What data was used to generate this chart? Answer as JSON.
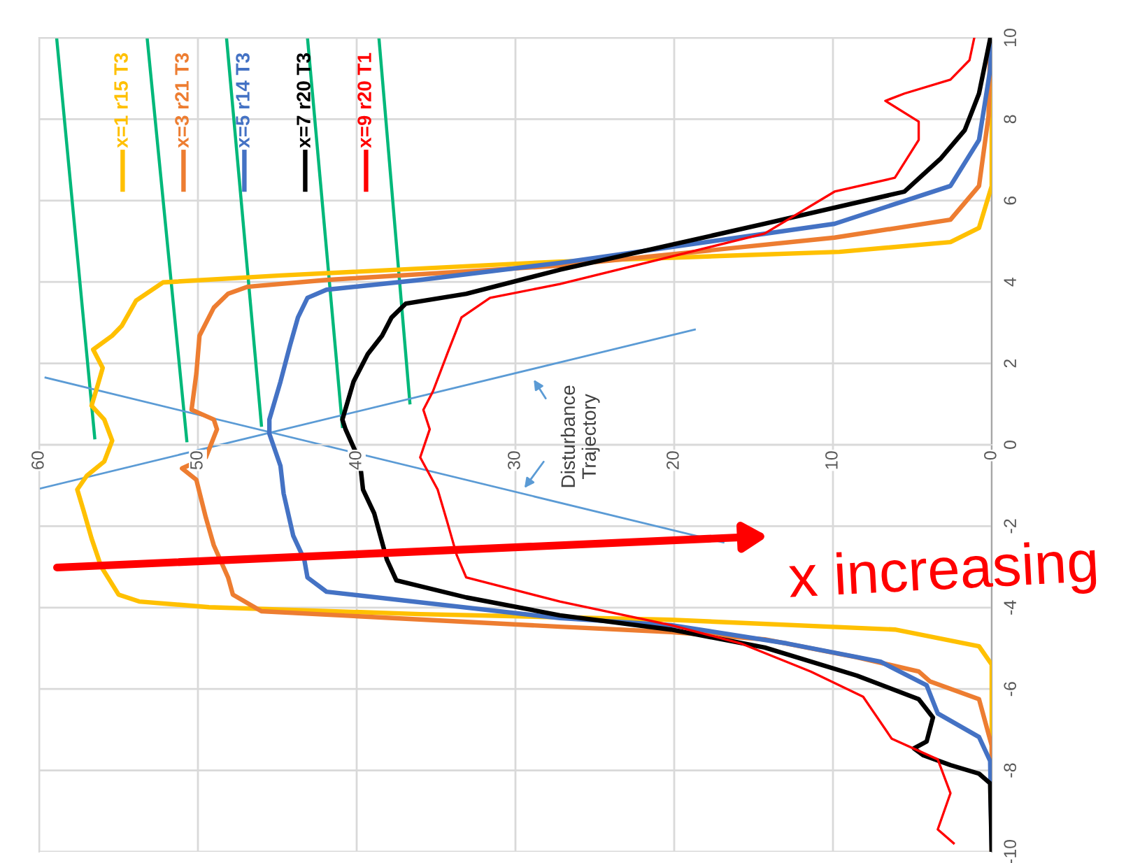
{
  "chart_data": {
    "type": "line",
    "xlim": [
      60,
      0
    ],
    "xticks": [
      60,
      50,
      40,
      30,
      20,
      10,
      0
    ],
    "ylim": [
      -10,
      10
    ],
    "yticks": [
      -10,
      -8,
      -6,
      -4,
      -2,
      0,
      2,
      4,
      6,
      8,
      10
    ],
    "grid": true,
    "legend": "top left",
    "marker": "none",
    "line_style": "solid",
    "series": [
      {
        "name": "x=1 r15 T3",
        "color": "#ffc000",
        "x": [
          0,
          0,
          0.8,
          6.1,
          20.2,
          36.0,
          49.3,
          53.7,
          55.0,
          56.1,
          56.7,
          57.2,
          57.6,
          57.0,
          55.9,
          55.4,
          55.9,
          56.7,
          56.3,
          56.0,
          56.6,
          55.4,
          54.8,
          53.9,
          52.2,
          44.8,
          27.2,
          9.6,
          2.6,
          0.8,
          0,
          0
        ],
        "values": [
          -10,
          -5.4,
          -4.95,
          -4.54,
          -4.3,
          -4.16,
          -3.99,
          -3.85,
          -3.68,
          -2.99,
          -2.3,
          -1.62,
          -1.1,
          -0.76,
          -0.41,
          0.1,
          0.62,
          0.96,
          1.48,
          1.89,
          2.34,
          2.68,
          2.92,
          3.54,
          3.99,
          4.16,
          4.5,
          4.74,
          4.98,
          5.33,
          6.36,
          10
        ]
      },
      {
        "name": "x=3 r21 T3",
        "color": "#ed7d31",
        "x": [
          0,
          0,
          0.8,
          3.9,
          4.6,
          8.5,
          14.3,
          20.2,
          27.2,
          46.0,
          47.8,
          48.1,
          49.0,
          49.5,
          50.1,
          51.0,
          49.5,
          48.8,
          49.0,
          50.4,
          50.1,
          49.9,
          49.0,
          48.1,
          46.9,
          41.9,
          27.2,
          9.9,
          2.6,
          0.8,
          0.2,
          0.1,
          0
        ],
        "values": [
          -10,
          -7.39,
          -6.25,
          -5.81,
          -5.57,
          -5.22,
          -4.78,
          -4.6,
          -4.47,
          -4.09,
          -3.68,
          -3.26,
          -2.47,
          -1.79,
          -0.86,
          -0.58,
          -0.31,
          0.38,
          0.62,
          0.86,
          1.75,
          2.68,
          3.37,
          3.71,
          3.88,
          4.05,
          4.4,
          5.09,
          5.53,
          6.36,
          8.08,
          9.79,
          10
        ]
      },
      {
        "name": "x=5 r14 T3",
        "color": "#4472c4",
        "x": [
          0,
          0.1,
          0.8,
          3.4,
          4.1,
          7.0,
          12.9,
          20.2,
          27.2,
          41.9,
          43.1,
          43.3,
          44.0,
          44.6,
          44.8,
          45.5,
          45.5,
          44.8,
          44.2,
          43.7,
          43.1,
          41.9,
          36.0,
          27.2,
          9.9,
          2.6,
          0.8,
          0.1,
          0
        ],
        "values": [
          -10,
          -7.77,
          -7.18,
          -6.6,
          -5.91,
          -5.33,
          -4.88,
          -4.43,
          -4.26,
          -3.61,
          -3.26,
          -2.82,
          -2.23,
          -1.2,
          -0.52,
          0.27,
          0.62,
          1.55,
          2.44,
          3.13,
          3.61,
          3.81,
          4.05,
          4.47,
          5.43,
          6.36,
          7.49,
          9.21,
          10
        ]
      },
      {
        "name": "x=7 r20 T3",
        "color": "#000000",
        "x": [
          0,
          0.1,
          0.8,
          2.6,
          4.3,
          4.9,
          4.1,
          3.7,
          4.6,
          8.5,
          14.3,
          20.2,
          27.2,
          33.1,
          37.5,
          38.1,
          38.9,
          39.6,
          39.8,
          40.7,
          40.9,
          40.2,
          39.3,
          38.4,
          37.8,
          36.9,
          33.1,
          27.2,
          14.3,
          5.5,
          3.2,
          1.7,
          0.8,
          0.1
        ],
        "values": [
          -10,
          -8.32,
          -8.08,
          -7.87,
          -7.63,
          -7.46,
          -7.29,
          -6.7,
          -6.25,
          -5.67,
          -4.98,
          -4.54,
          -4.19,
          -3.75,
          -3.33,
          -2.82,
          -1.68,
          -1.1,
          -0.41,
          0.38,
          0.62,
          1.55,
          2.23,
          2.68,
          3.13,
          3.47,
          3.71,
          4.3,
          5.43,
          6.22,
          7.04,
          7.73,
          8.63,
          9.97
        ]
      },
      {
        "name": "x=9 r20 T1",
        "color": "#ff0000",
        "x": [
          2.4,
          3.4,
          2.6,
          3.4,
          6.3,
          8.1,
          11.4,
          15.8,
          20.2,
          27.2,
          33.1,
          33.7,
          34.3,
          34.9,
          36.0,
          35.4,
          35.8,
          35.2,
          34.3,
          33.4,
          31.6,
          27.2,
          14.3,
          9.9,
          6.1,
          4.6,
          4.6,
          6.7,
          5.5,
          2.6,
          1.4,
          1.1
        ],
        "values": [
          -9.79,
          -9.45,
          -8.56,
          -7.73,
          -7.22,
          -6.19,
          -5.57,
          -4.88,
          -4.43,
          -3.85,
          -3.26,
          -2.71,
          -1.89,
          -1.1,
          -0.31,
          0.38,
          0.86,
          1.31,
          2.23,
          3.13,
          3.61,
          3.95,
          5.19,
          6.22,
          6.56,
          7.49,
          7.94,
          8.45,
          8.63,
          8.97,
          9.45,
          10
        ]
      },
      {
        "color": "#00b87a",
        "x": [
          58.9,
          56.5
        ],
        "values": [
          10,
          0.17
        ]
      },
      {
        "color": "#00b87a",
        "x": [
          53.2,
          50.7
        ],
        "values": [
          10,
          0.1
        ]
      },
      {
        "color": "#00b87a",
        "x": [
          48.2,
          46.0
        ],
        "values": [
          10,
          0.48
        ]
      },
      {
        "color": "#00b87a",
        "x": [
          43.1,
          40.9
        ],
        "values": [
          10,
          0.45
        ]
      },
      {
        "color": "#00b87a",
        "x": [
          38.6,
          36.65
        ],
        "values": [
          10,
          1.03
        ]
      },
      {
        "color": "#5b9bd5",
        "x": [
          59.6,
          16.9
        ],
        "values": [
          1.65,
          -2.4
        ]
      },
      {
        "color": "#5b9bd5",
        "x": [
          60,
          18.7
        ],
        "values": [
          -1.08,
          2.83
        ]
      }
    ],
    "annotations": [
      "Disturbance\nTrajectory",
      "x increasing"
    ]
  }
}
